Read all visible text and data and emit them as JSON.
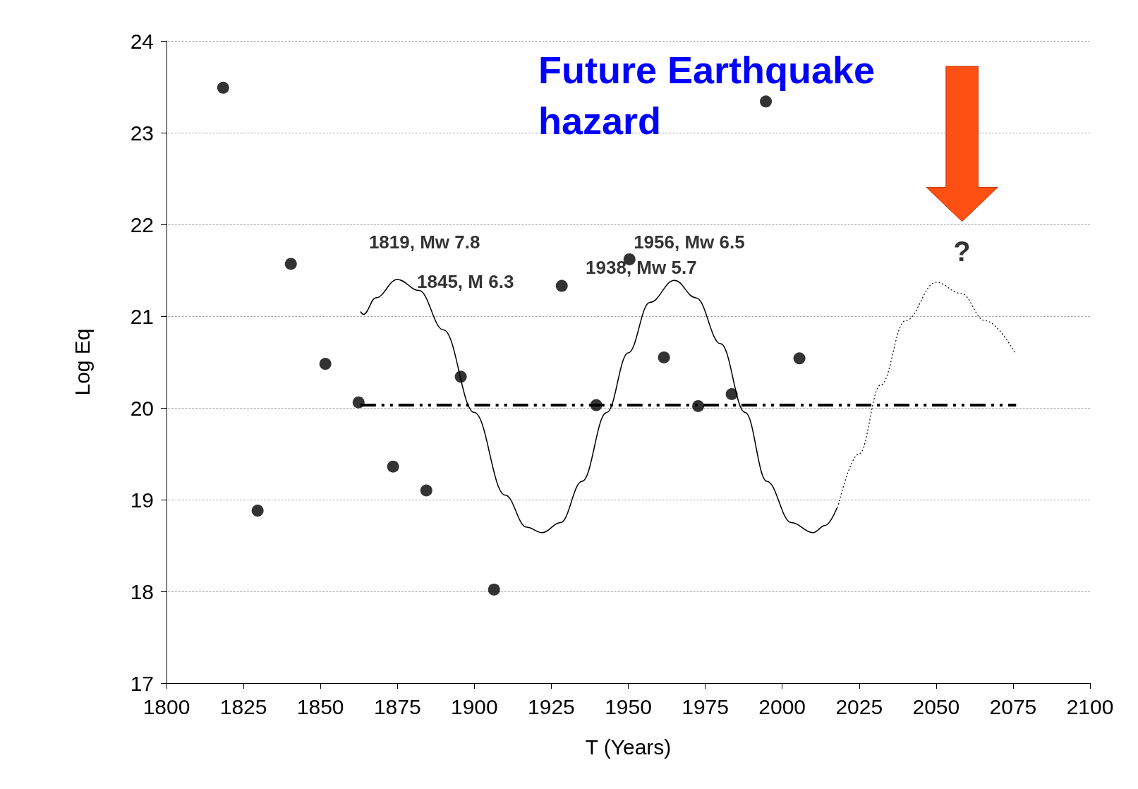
{
  "chart_data": {
    "type": "scatter",
    "title": "Future Earthquake hazard",
    "xlabel": "T (Years)",
    "ylabel": "Log Eq",
    "xlim": [
      1800,
      2100
    ],
    "xticks": [
      1800,
      1825,
      1850,
      1875,
      1900,
      1925,
      1950,
      1975,
      2000,
      2025,
      2050,
      2075,
      2100
    ],
    "ylim": [
      17,
      24
    ],
    "yticks": [
      17,
      18,
      19,
      20,
      21,
      22,
      23,
      24
    ],
    "grid": "y",
    "series": [
      {
        "marker": "circle",
        "color": "#000000",
        "x": [
          1818.4,
          1829.6,
          1840.4,
          1851.6,
          1862.4,
          1873.6,
          1884.4,
          1895.6,
          1906.4,
          1928.4,
          1939.6,
          1950.4,
          1961.6,
          1972.7,
          1983.6,
          1994.7,
          2005.6
        ],
        "values": [
          23.49,
          18.88,
          21.57,
          20.48,
          20.06,
          19.36,
          19.1,
          20.34,
          18.02,
          21.33,
          20.03,
          21.62,
          20.55,
          20.02,
          20.15,
          23.34,
          20.54
        ]
      },
      {
        "type": "line",
        "marker": "none",
        "color": "#000000",
        "line_style": "solid",
        "x": [
          1863,
          1864,
          1868,
          1875,
          1882,
          1890,
          1900,
          1910,
          1917,
          1922,
          1928,
          1935,
          1943,
          1950,
          1957,
          1965,
          1972,
          1980,
          1988,
          1995,
          2003,
          2010,
          2014,
          2017.8
        ],
        "values": [
          21.05,
          21.02,
          21.2,
          21.4,
          21.28,
          20.85,
          19.95,
          19.05,
          18.7,
          18.64,
          18.75,
          19.2,
          19.95,
          20.6,
          21.15,
          21.39,
          21.2,
          20.7,
          19.95,
          19.2,
          18.75,
          18.64,
          18.72,
          18.91
        ]
      },
      {
        "type": "line",
        "marker": "none",
        "color": "#000000",
        "line_style": "dotted",
        "x": [
          2018,
          2025,
          2032,
          2040,
          2050,
          2058,
          2066,
          2075.6
        ],
        "values": [
          18.91,
          19.5,
          20.25,
          20.95,
          21.37,
          21.25,
          20.95,
          20.6
        ]
      },
      {
        "type": "line",
        "marker": "none",
        "color": "#000000",
        "line_style": "dashed",
        "x": [
          1863,
          2076
        ],
        "values": [
          20.03,
          20.03
        ]
      }
    ],
    "annotations": [
      "1819, Mw 7.8",
      "1845, M 6.3",
      "1938, Mw 5.7",
      "1956, Mw 6.5",
      "?"
    ]
  }
}
